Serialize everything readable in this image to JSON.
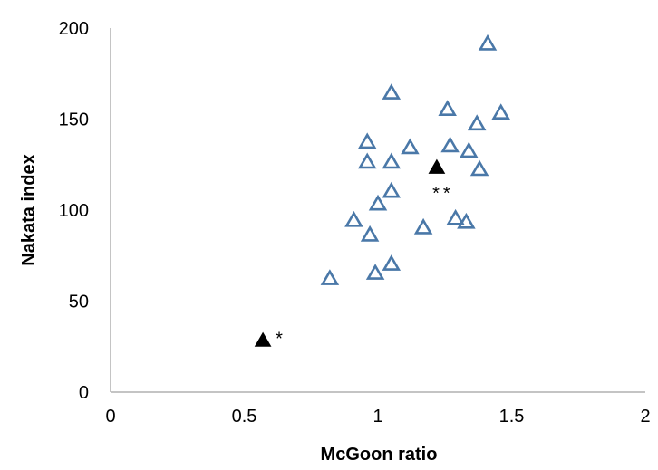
{
  "chart_data": {
    "type": "scatter",
    "title": "",
    "xlabel": "McGoon ratio",
    "ylabel": "Nakata index",
    "xlim": [
      0,
      2
    ],
    "ylim": [
      0,
      200
    ],
    "x_ticks": [
      "0",
      "0.5",
      "1",
      "1.5",
      "2"
    ],
    "y_ticks": [
      "0",
      "50",
      "100",
      "150",
      "200"
    ],
    "grid": false,
    "legend": "none",
    "colors": {
      "open_marker": "#4a78a8",
      "filled_marker": "#000000"
    },
    "series": [
      {
        "marker": "open-triangle",
        "points": [
          {
            "x": 0.82,
            "y": 62
          },
          {
            "x": 0.99,
            "y": 65
          },
          {
            "x": 1.05,
            "y": 70
          },
          {
            "x": 0.97,
            "y": 86
          },
          {
            "x": 0.91,
            "y": 94
          },
          {
            "x": 1.0,
            "y": 103
          },
          {
            "x": 1.05,
            "y": 110
          },
          {
            "x": 0.96,
            "y": 126
          },
          {
            "x": 0.96,
            "y": 137
          },
          {
            "x": 1.05,
            "y": 126
          },
          {
            "x": 1.05,
            "y": 164
          },
          {
            "x": 1.12,
            "y": 134
          },
          {
            "x": 1.17,
            "y": 90
          },
          {
            "x": 1.26,
            "y": 155
          },
          {
            "x": 1.27,
            "y": 135
          },
          {
            "x": 1.29,
            "y": 95
          },
          {
            "x": 1.33,
            "y": 93
          },
          {
            "x": 1.34,
            "y": 132
          },
          {
            "x": 1.37,
            "y": 147
          },
          {
            "x": 1.38,
            "y": 122
          },
          {
            "x": 1.41,
            "y": 191
          },
          {
            "x": 1.46,
            "y": 153
          }
        ]
      },
      {
        "marker": "filled-triangle",
        "points": [
          {
            "x": 0.57,
            "y": 28,
            "label": "*"
          },
          {
            "x": 1.22,
            "y": 123,
            "label": "**"
          }
        ]
      }
    ]
  }
}
